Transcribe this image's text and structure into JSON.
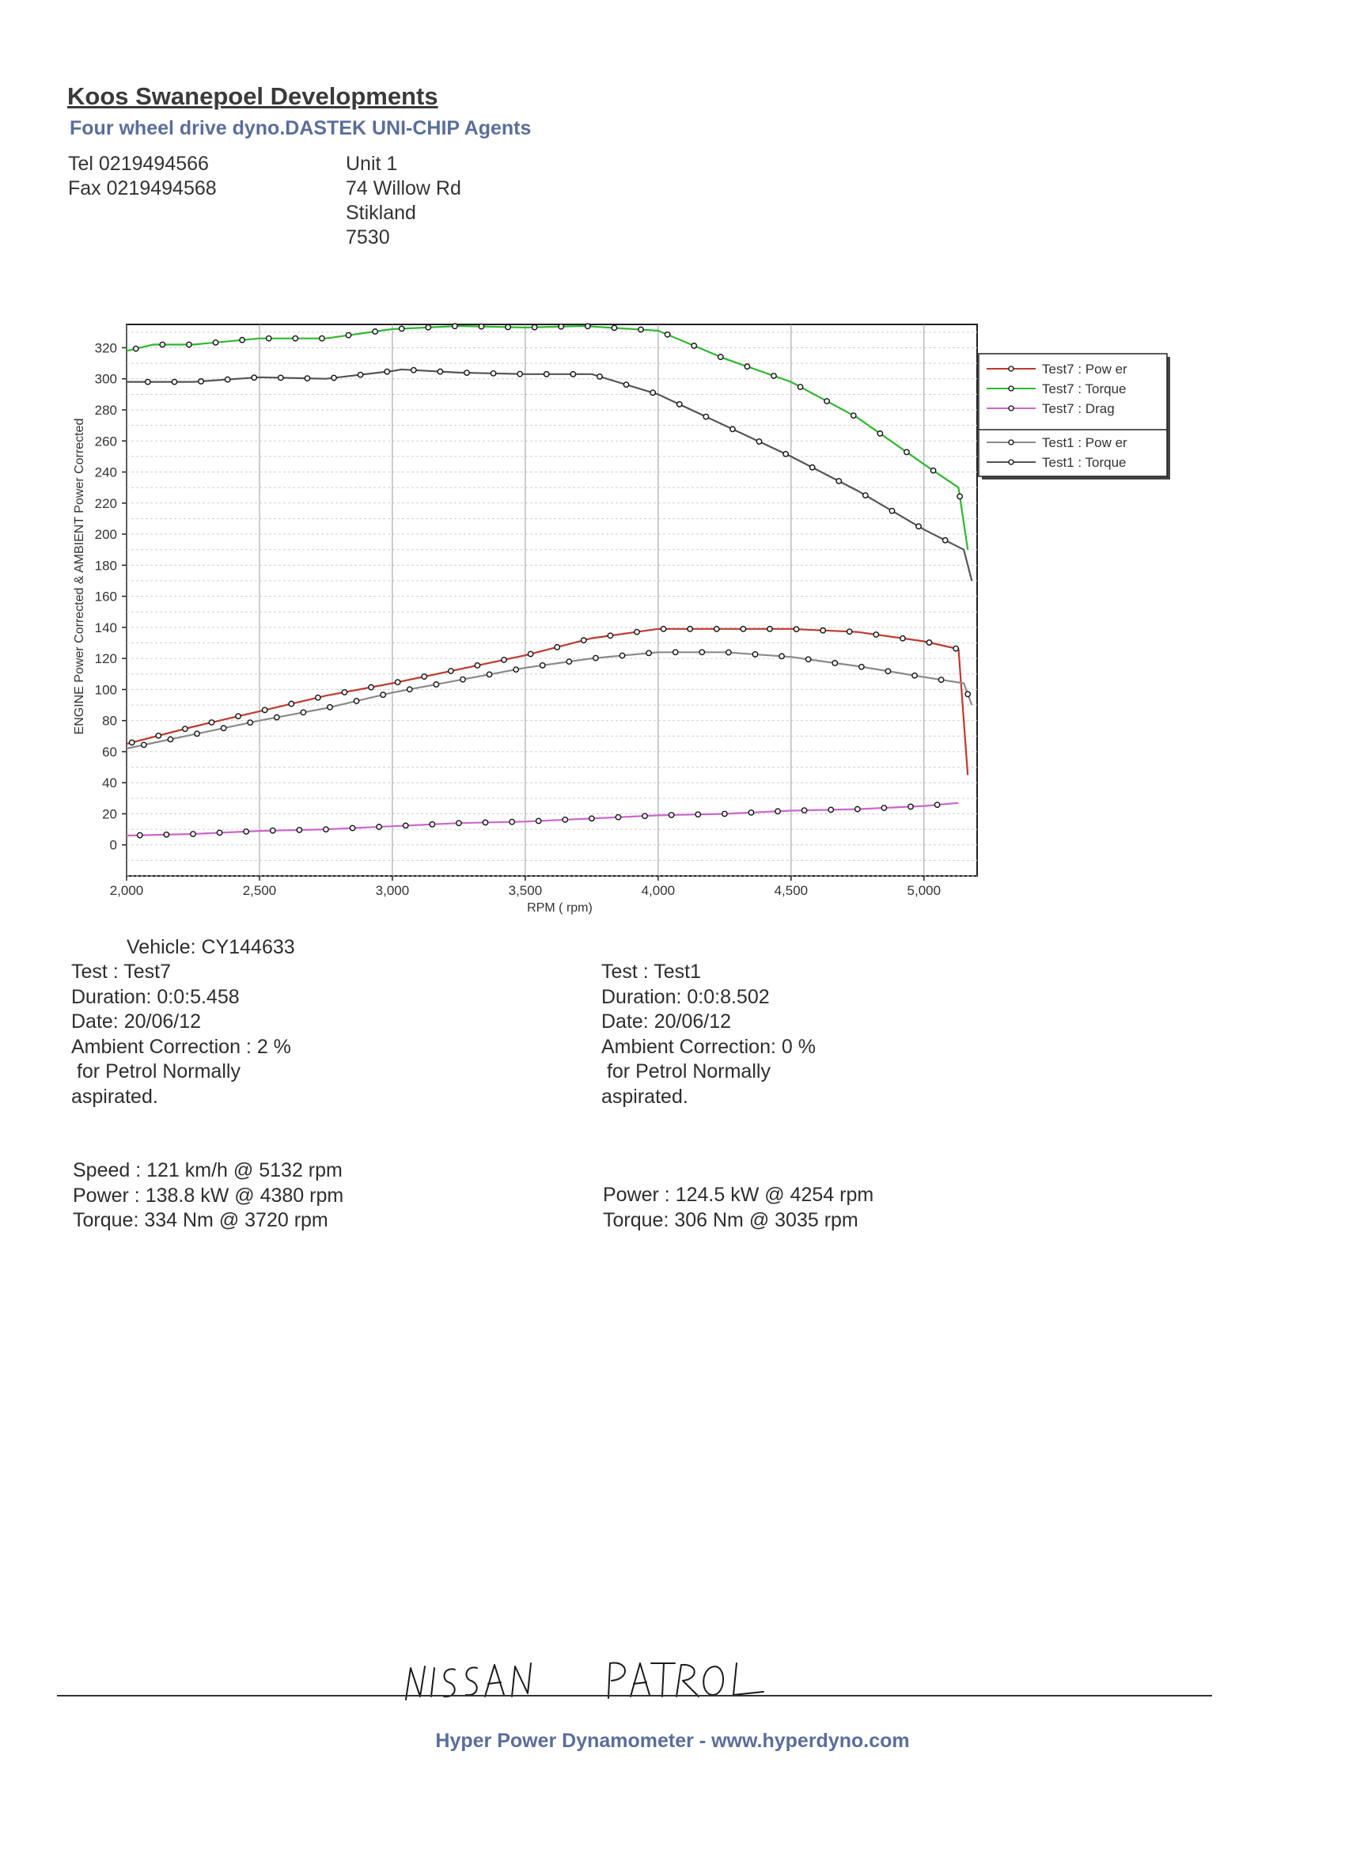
{
  "header": {
    "company": "Koos Swanepoel Developments",
    "tagline": "Four wheel drive dyno.DASTEK UNI-CHIP Agents",
    "tel": "Tel 0219494566",
    "fax": "Fax 0219494568",
    "address": [
      "Unit 1",
      "74 Willow Rd",
      "Stikland",
      "7530"
    ]
  },
  "chart_data": {
    "type": "line",
    "xlabel": "RPM ( rpm)",
    "ylabel": "ENGINE Power Corrected & AMBIENT Power Corrected",
    "xlim": [
      2000,
      5200
    ],
    "ylim": [
      -20,
      335
    ],
    "xticks": [
      "2,000",
      "2,500",
      "3,000",
      "3,500",
      "4,000",
      "4,500",
      "5,000"
    ],
    "yticks": [
      "0",
      "20",
      "40",
      "60",
      "80",
      "100",
      "120",
      "140",
      "160",
      "180",
      "200",
      "220",
      "240",
      "260",
      "280",
      "300",
      "320"
    ],
    "grid": true,
    "legend_position": "right",
    "series": [
      {
        "name": "Test7 : Pow er",
        "color": "#c0392b",
        "x": [
          2000,
          2250,
          2500,
          2750,
          3000,
          3250,
          3500,
          3750,
          4000,
          4250,
          4500,
          4750,
          5000,
          5130,
          5165
        ],
        "y": [
          65,
          76,
          86,
          96,
          104,
          113,
          122,
          133,
          139,
          139,
          139,
          137,
          131,
          126,
          45
        ]
      },
      {
        "name": "Test7 : Torque",
        "color": "#2eb82e",
        "x": [
          2000,
          2100,
          2250,
          2500,
          2750,
          3000,
          3250,
          3500,
          3720,
          4000,
          4250,
          4500,
          4750,
          5000,
          5130,
          5165
        ],
        "y": [
          318,
          322,
          322,
          326,
          326,
          332,
          334,
          333,
          334,
          331,
          313,
          298,
          275,
          245,
          230,
          190
        ]
      },
      {
        "name": "Test7 : Drag",
        "color": "#cc66cc",
        "x": [
          2000,
          2250,
          2500,
          2750,
          3000,
          3250,
          3500,
          3750,
          4000,
          4250,
          4500,
          4750,
          5000,
          5130
        ],
        "y": [
          6,
          7,
          9,
          10,
          12,
          14,
          15,
          17,
          19,
          20,
          22,
          23,
          25,
          27
        ]
      },
      {
        "name": "Test1 : Pow er",
        "color": "#8a8a8a",
        "x": [
          2000,
          2250,
          2500,
          2750,
          3000,
          3250,
          3500,
          3750,
          4000,
          4254,
          4500,
          4750,
          5000,
          5150,
          5180
        ],
        "y": [
          62,
          71,
          80,
          88,
          98,
          106,
          114,
          120,
          124,
          124,
          121,
          115,
          108,
          104,
          90
        ]
      },
      {
        "name": "Test1 : Torque",
        "color": "#555555",
        "x": [
          2000,
          2250,
          2500,
          2750,
          3000,
          3035,
          3250,
          3500,
          3750,
          4000,
          4250,
          4500,
          4750,
          5000,
          5150,
          5180
        ],
        "y": [
          298,
          298,
          301,
          300,
          305,
          306,
          304,
          303,
          303,
          290,
          270,
          250,
          228,
          203,
          190,
          170
        ]
      }
    ]
  },
  "vehicle": "Vehicle: CY144633",
  "test7": {
    "test": "Test    : Test7",
    "duration": "Duration: 0:0:5.458",
    "date": "Date: 20/06/12",
    "ambient": "Ambient Correction : 2 %",
    "for_fuel": " for Petrol Normally",
    "aspirated": "aspirated.",
    "speed": "Speed : 121 km/h @ 5132 rpm",
    "power": "Power : 138.8 kW @ 4380 rpm",
    "torque": "Torque: 334 Nm @ 3720 rpm"
  },
  "test1": {
    "test": "Test    : Test1",
    "duration": "Duration: 0:0:8.502",
    "date": "Date: 20/06/12",
    "ambient": "Ambient Correction: 0 %",
    "for_fuel": " for Petrol Normally",
    "aspirated": "aspirated.",
    "power": "Power : 124.5 kW @ 4254 rpm",
    "torque": "Torque: 306 Nm @ 3035 rpm"
  },
  "handwriting": "NISSAN   PATROL",
  "footer": "Hyper Power Dynamometer  -  www.hyperdyno.com"
}
